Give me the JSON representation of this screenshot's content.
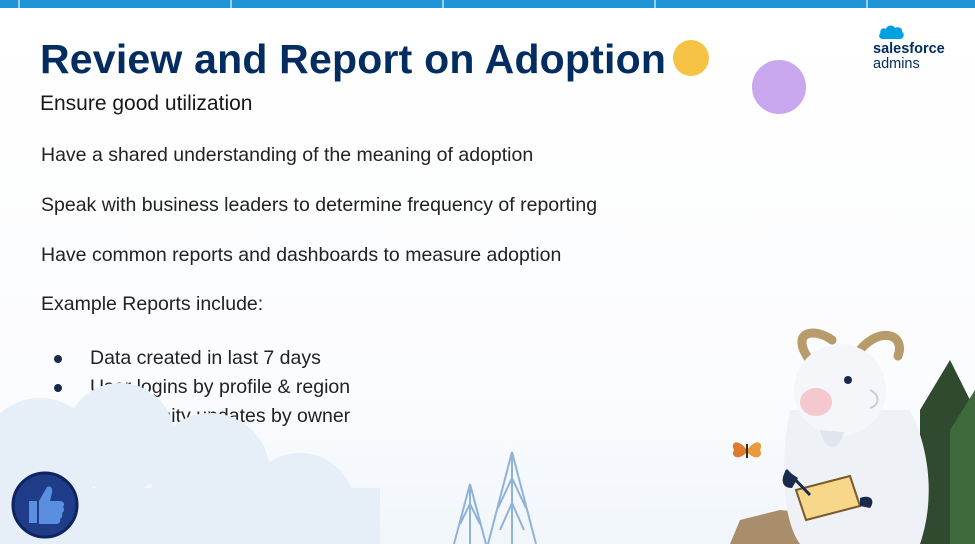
{
  "slide": {
    "title": "Review and Report on Adoption",
    "subtitle": "Ensure good utilization",
    "points": [
      "Have a shared understanding of the meaning of adoption",
      "Speak with business leaders to determine frequency of reporting",
      "Have common reports and dashboards to measure adoption",
      "Example Reports include:"
    ],
    "examples": [
      "Data created in last 7 days",
      "User logins by profile & region",
      "Opportunity updates by owner"
    ]
  },
  "logo": {
    "brand": "salesforce",
    "tagline": "admins"
  },
  "colors": {
    "title": "#032d60",
    "accent_strip": "#1f95d8",
    "sun": "#f6c244",
    "planet": "#c9a7ef"
  },
  "icons": [
    "salesforce-cloud-icon",
    "thumbs-up-icon",
    "goat-mascot",
    "butterfly-icon",
    "pine-tree-icon"
  ]
}
